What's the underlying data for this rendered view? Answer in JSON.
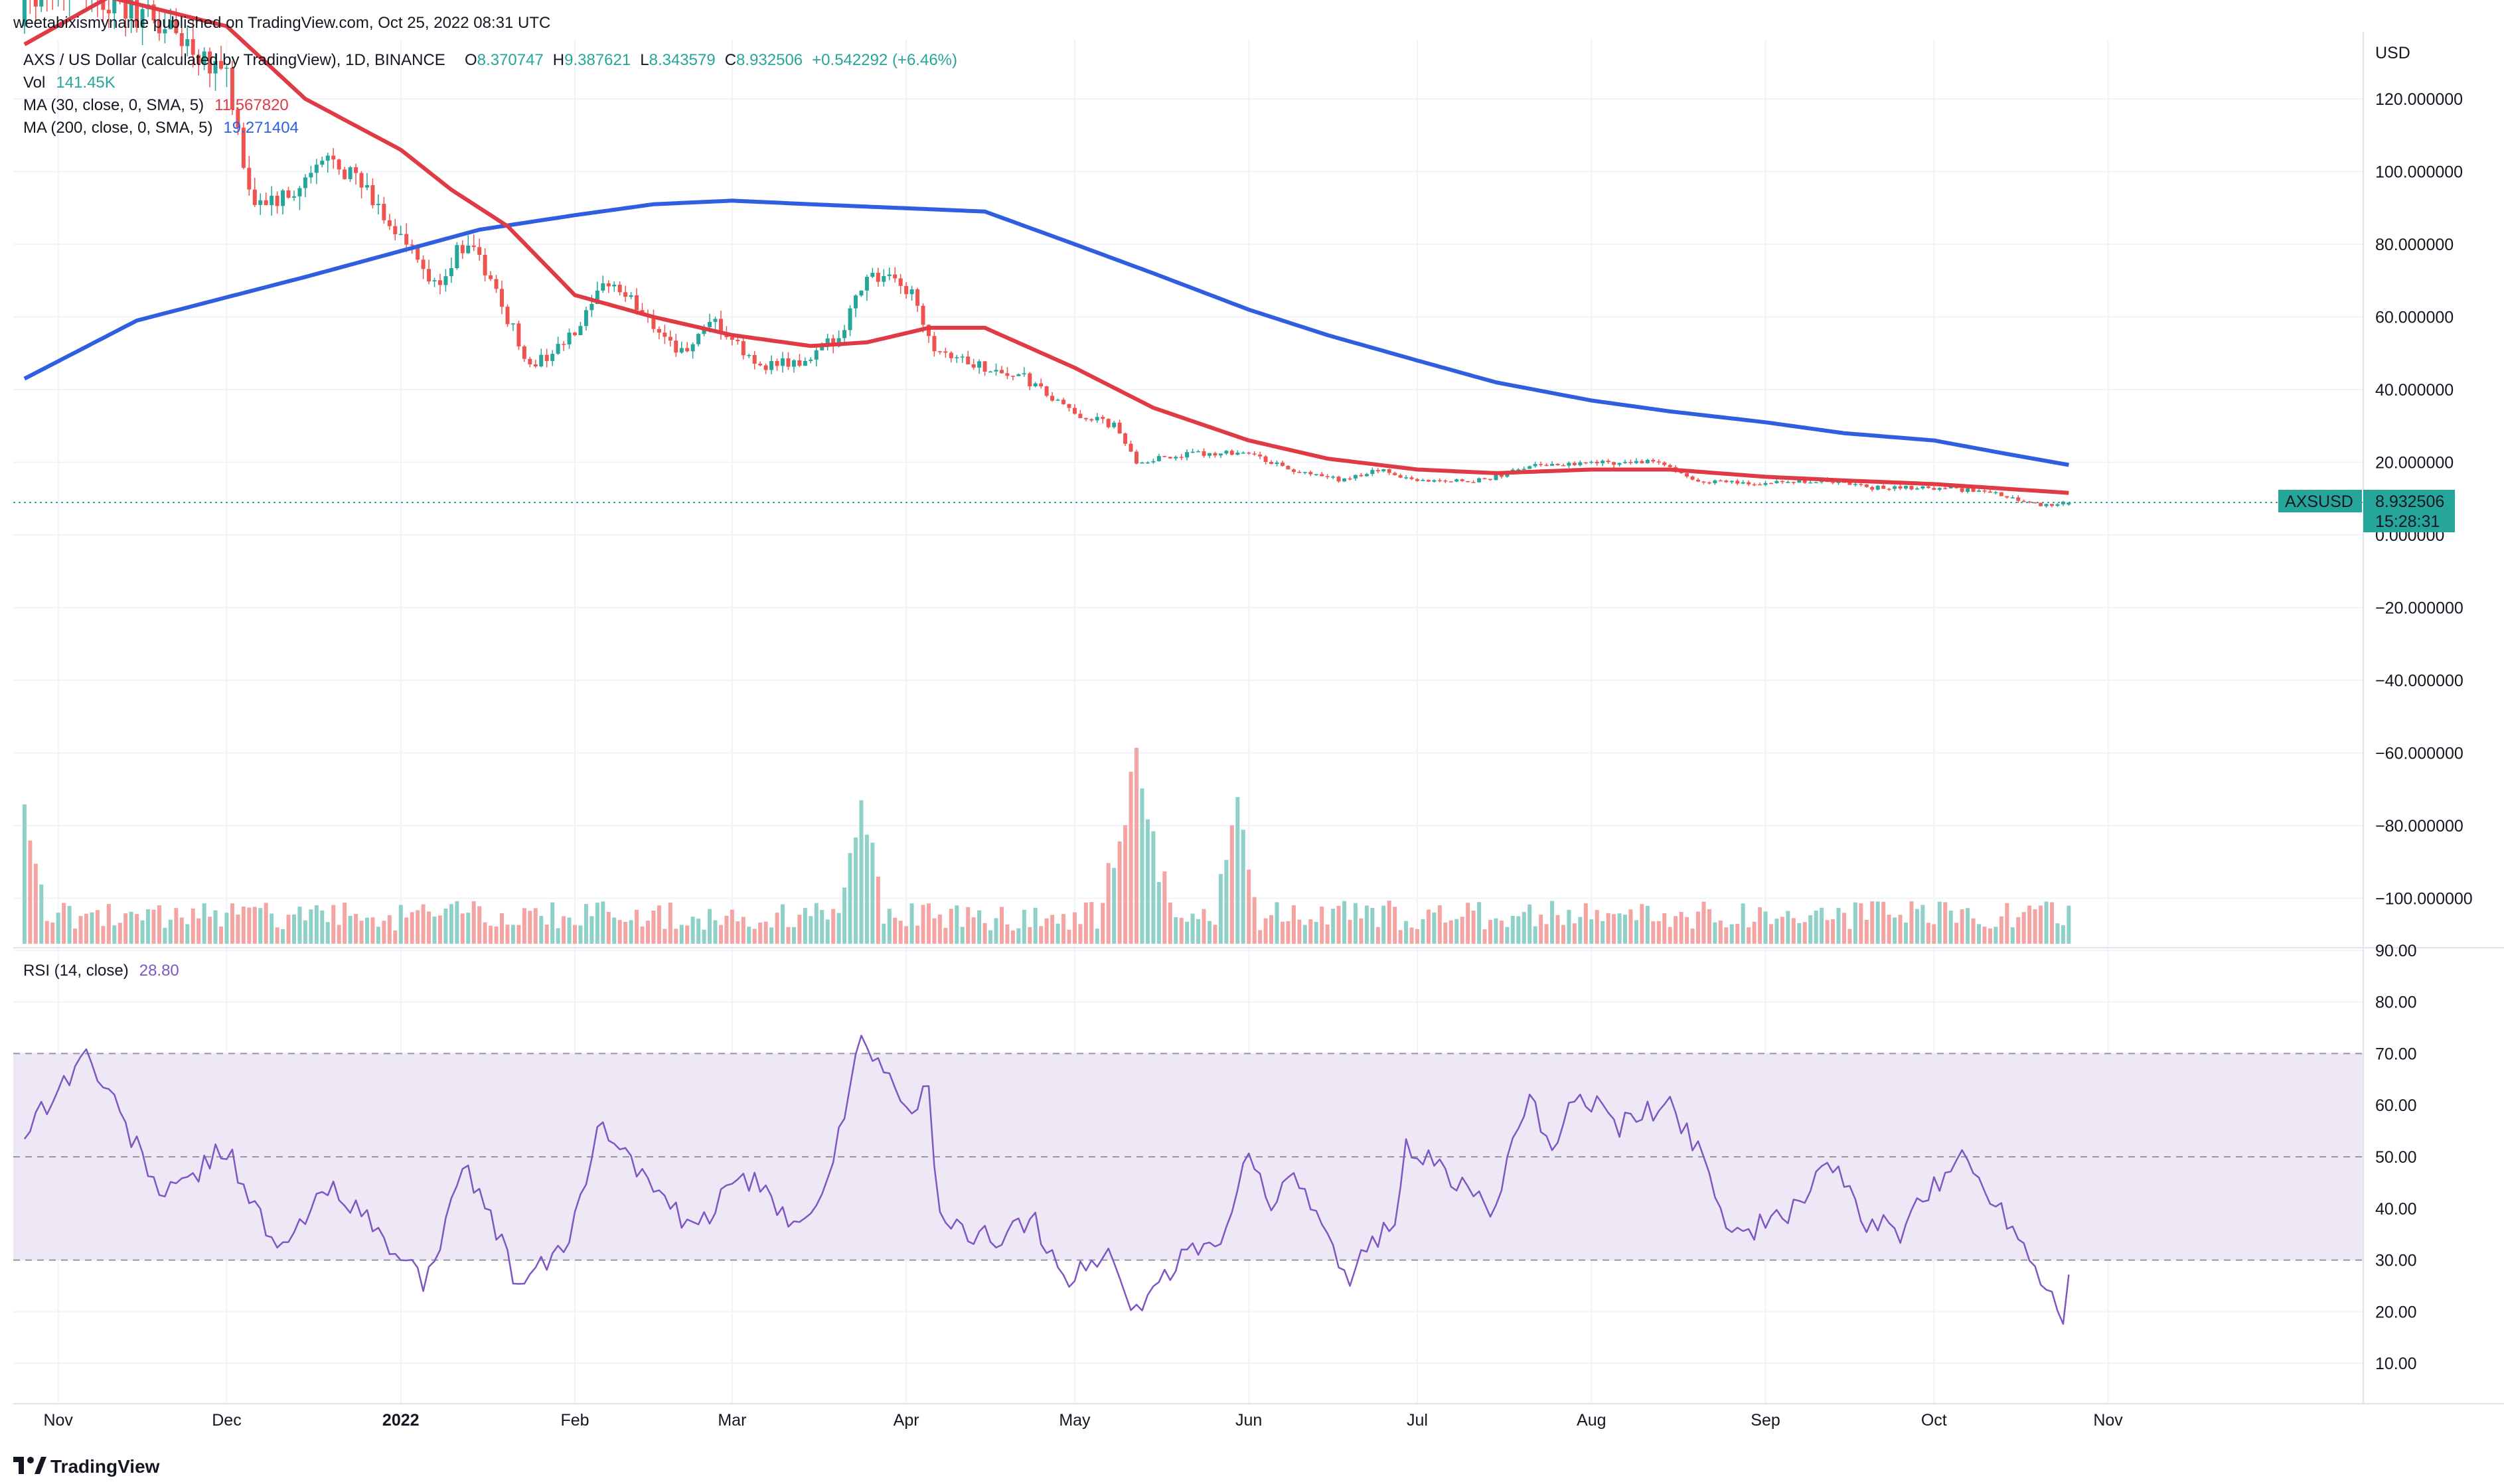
{
  "header": {
    "published": "weetabixismyname published on TradingView.com, Oct 25, 2022 08:31 UTC",
    "symbol_title": "AXS / US Dollar (calculated by TradingView), 1D, BINANCE",
    "ohlc": {
      "o_label": "O",
      "o": "8.370747",
      "h_label": "H",
      "h": "9.387621",
      "l_label": "L",
      "l": "8.343579",
      "c_label": "C",
      "c": "8.932506",
      "change": "+0.542292 (+6.46%)"
    },
    "vol_label": "Vol",
    "vol_value": "141.45K",
    "ma30_label": "MA (30, close, 0, SMA, 5)",
    "ma30_value": "11.567820",
    "ma200_label": "MA (200, close, 0, SMA, 5)",
    "ma200_value": "19.271404"
  },
  "price_axis": {
    "currency": "USD",
    "ticks": [
      "120.000000",
      "100.000000",
      "80.000000",
      "60.000000",
      "40.000000",
      "20.000000",
      "0.000000",
      "−20.000000",
      "−40.000000",
      "−60.000000",
      "−80.000000",
      "−100.000000"
    ],
    "tag_symbol": "AXSUSD",
    "tag_price": "8.932506",
    "tag_countdown": "15:28:31"
  },
  "rsi": {
    "label": "RSI (14, close)",
    "value": "28.80",
    "ticks": [
      "90.00",
      "80.00",
      "70.00",
      "60.00",
      "50.00",
      "40.00",
      "30.00",
      "20.00",
      "10.00"
    ]
  },
  "time_axis": {
    "labels": [
      "Nov",
      "Dec",
      "2022",
      "Feb",
      "Mar",
      "Apr",
      "May",
      "Jun",
      "Jul",
      "Aug",
      "Sep",
      "Oct",
      "Nov"
    ]
  },
  "branding": {
    "logo_text": "TradingView"
  },
  "colors": {
    "up": "#26a69a",
    "down": "#ef5350",
    "ma30": "#e03a44",
    "ma200": "#2f5fe0",
    "rsi": "#7e57c2",
    "band": "#ede7f6",
    "vol_up": "#8fd1c9",
    "vol_down": "#f4a5a3"
  },
  "chart_data": {
    "type": "candlestick",
    "interval": "1D",
    "price_range": [
      -110,
      130
    ],
    "candles_ohlc_keyframes": [
      [
        "2021-10-26",
        140,
        150
      ],
      [
        "2021-11-05",
        145,
        152
      ],
      [
        "2021-11-20",
        135,
        140
      ],
      [
        "2021-12-01",
        125,
        128
      ],
      [
        "2021-12-05",
        100,
        92
      ],
      [
        "2021-12-12",
        95,
        92
      ],
      [
        "2021-12-20",
        108,
        105
      ],
      [
        "2021-12-27",
        102,
        92
      ],
      [
        "2022-01-01",
        95,
        82
      ],
      [
        "2022-01-07",
        66,
        68
      ],
      [
        "2022-01-13",
        75,
        82
      ],
      [
        "2022-01-20",
        70,
        60
      ],
      [
        "2022-01-24",
        50,
        46
      ],
      [
        "2022-02-01",
        48,
        55
      ],
      [
        "2022-02-07",
        68,
        70
      ],
      [
        "2022-02-14",
        62,
        60
      ],
      [
        "2022-02-20",
        58,
        50
      ],
      [
        "2022-02-26",
        52,
        58
      ],
      [
        "2022-03-05",
        50,
        47
      ],
      [
        "2022-03-14",
        45,
        47
      ],
      [
        "2022-03-20",
        52,
        55
      ],
      [
        "2022-03-25",
        71,
        72
      ],
      [
        "2022-04-02",
        66,
        67
      ],
      [
        "2022-04-06",
        56,
        52
      ],
      [
        "2022-04-13",
        48,
        47
      ],
      [
        "2022-04-22",
        45,
        43
      ],
      [
        "2022-04-30",
        40,
        34
      ],
      [
        "2022-05-08",
        33,
        30
      ],
      [
        "2022-05-12",
        22,
        20
      ],
      [
        "2022-05-20",
        21,
        22
      ],
      [
        "2022-05-31",
        26,
        23
      ],
      [
        "2022-06-10",
        20,
        17
      ],
      [
        "2022-06-18",
        15,
        15
      ],
      [
        "2022-06-24",
        17,
        18
      ],
      [
        "2022-07-01",
        16,
        15
      ],
      [
        "2022-07-13",
        14,
        15
      ],
      [
        "2022-07-21",
        18,
        19
      ],
      [
        "2022-07-31",
        21,
        20
      ],
      [
        "2022-08-13",
        21,
        20
      ],
      [
        "2022-08-19",
        16,
        15
      ],
      [
        "2022-08-31",
        14,
        14
      ],
      [
        "2022-09-12",
        15,
        15
      ],
      [
        "2022-09-20",
        13,
        13
      ],
      [
        "2022-10-01",
        13,
        13
      ],
      [
        "2022-10-10",
        12,
        12
      ],
      [
        "2022-10-21",
        9,
        8
      ],
      [
        "2022-10-25",
        8.37,
        8.93
      ]
    ],
    "ma30": [
      [
        "2021-10-26",
        135
      ],
      [
        "2021-11-10",
        148
      ],
      [
        "2021-12-01",
        140
      ],
      [
        "2021-12-15",
        120
      ],
      [
        "2022-01-01",
        106
      ],
      [
        "2022-01-10",
        95
      ],
      [
        "2022-01-20",
        85
      ],
      [
        "2022-02-01",
        66
      ],
      [
        "2022-02-15",
        60
      ],
      [
        "2022-03-01",
        55
      ],
      [
        "2022-03-15",
        52
      ],
      [
        "2022-03-25",
        53
      ],
      [
        "2022-04-05",
        57
      ],
      [
        "2022-04-15",
        57
      ],
      [
        "2022-05-01",
        46
      ],
      [
        "2022-05-15",
        35
      ],
      [
        "2022-06-01",
        26
      ],
      [
        "2022-06-15",
        21
      ],
      [
        "2022-07-01",
        18
      ],
      [
        "2022-07-15",
        17
      ],
      [
        "2022-08-01",
        18
      ],
      [
        "2022-08-15",
        18
      ],
      [
        "2022-09-01",
        16
      ],
      [
        "2022-09-15",
        15
      ],
      [
        "2022-10-01",
        14
      ],
      [
        "2022-10-25",
        11.57
      ]
    ],
    "ma200": [
      [
        "2021-10-26",
        43
      ],
      [
        "2021-11-15",
        59
      ],
      [
        "2021-12-15",
        71
      ],
      [
        "2022-01-15",
        84
      ],
      [
        "2022-02-01",
        88
      ],
      [
        "2022-02-15",
        91
      ],
      [
        "2022-03-01",
        92
      ],
      [
        "2022-03-15",
        91
      ],
      [
        "2022-04-15",
        89
      ],
      [
        "2022-05-01",
        80
      ],
      [
        "2022-05-15",
        72
      ],
      [
        "2022-06-01",
        62
      ],
      [
        "2022-06-15",
        55
      ],
      [
        "2022-07-01",
        48
      ],
      [
        "2022-07-15",
        42
      ],
      [
        "2022-08-01",
        37
      ],
      [
        "2022-08-15",
        34
      ],
      [
        "2022-09-01",
        31
      ],
      [
        "2022-09-15",
        28
      ],
      [
        "2022-10-01",
        26
      ],
      [
        "2022-10-15",
        22
      ],
      [
        "2022-10-25",
        19.27
      ]
    ],
    "rsi_keyframes": [
      [
        "2021-10-26",
        55
      ],
      [
        "2021-11-06",
        70
      ],
      [
        "2021-11-20",
        42
      ],
      [
        "2021-12-01",
        52
      ],
      [
        "2021-12-10",
        31
      ],
      [
        "2021-12-20",
        45
      ],
      [
        "2021-12-27",
        36
      ],
      [
        "2022-01-05",
        26
      ],
      [
        "2022-01-13",
        48
      ],
      [
        "2022-01-22",
        25
      ],
      [
        "2022-01-30",
        32
      ],
      [
        "2022-02-06",
        57
      ],
      [
        "2022-02-14",
        45
      ],
      [
        "2022-02-22",
        35
      ],
      [
        "2022-03-03",
        47
      ],
      [
        "2022-03-11",
        37
      ],
      [
        "2022-03-18",
        44
      ],
      [
        "2022-03-24",
        75
      ],
      [
        "2022-03-31",
        60
      ],
      [
        "2022-04-05",
        62
      ],
      [
        "2022-04-07",
        37
      ],
      [
        "2022-04-14",
        34
      ],
      [
        "2022-04-24",
        37
      ],
      [
        "2022-04-30",
        26
      ],
      [
        "2022-05-07",
        32
      ],
      [
        "2022-05-11",
        20
      ],
      [
        "2022-05-21",
        31
      ],
      [
        "2022-05-28",
        35
      ],
      [
        "2022-05-31",
        51
      ],
      [
        "2022-06-05",
        42
      ],
      [
        "2022-06-10",
        45
      ],
      [
        "2022-06-18",
        26
      ],
      [
        "2022-06-27",
        39
      ],
      [
        "2022-06-29",
        52
      ],
      [
        "2022-07-07",
        46
      ],
      [
        "2022-07-14",
        40
      ],
      [
        "2022-07-21",
        60
      ],
      [
        "2022-07-26",
        51
      ],
      [
        "2022-07-29",
        63
      ],
      [
        "2022-08-06",
        56
      ],
      [
        "2022-08-15",
        60
      ],
      [
        "2022-08-21",
        50
      ],
      [
        "2022-08-26",
        35
      ],
      [
        "2022-09-05",
        38
      ],
      [
        "2022-09-12",
        50
      ],
      [
        "2022-09-18",
        38
      ],
      [
        "2022-09-25",
        35
      ],
      [
        "2022-10-03",
        47
      ],
      [
        "2022-10-06",
        50
      ],
      [
        "2022-10-15",
        37
      ],
      [
        "2022-10-21",
        25
      ],
      [
        "2022-10-24",
        20
      ],
      [
        "2022-10-25",
        28.8
      ]
    ],
    "rsi_levels": [
      70,
      50,
      30
    ],
    "rsi_range": [
      0,
      100
    ],
    "volume_peak_dates": [
      "2021-10-26",
      "2022-03-24",
      "2022-05-12",
      "2022-05-30"
    ]
  }
}
